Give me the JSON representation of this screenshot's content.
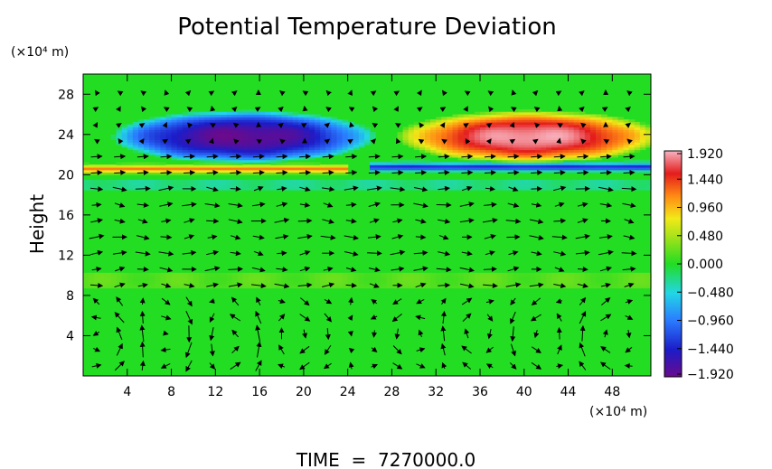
{
  "chart_data": {
    "type": "heatmap",
    "title": "Potential Temperature Deviation",
    "ylabel": "Height",
    "y_unit": "(×10⁴ m)",
    "x_unit": "(×10⁴ m)",
    "footer": "TIME  =  7270000.0",
    "xlim": [
      0,
      51.5
    ],
    "ylim": [
      0,
      30
    ],
    "x_ticks": [
      "4",
      "8",
      "12",
      "16",
      "20",
      "24",
      "28",
      "32",
      "36",
      "40",
      "44",
      "48"
    ],
    "x_tick_values": [
      4,
      8,
      12,
      16,
      20,
      24,
      28,
      32,
      36,
      40,
      44,
      48
    ],
    "y_ticks": [
      "4",
      "8",
      "12",
      "16",
      "20",
      "24",
      "28"
    ],
    "y_tick_values": [
      4,
      8,
      12,
      16,
      20,
      24,
      28
    ],
    "colorbar": {
      "min": -1.92,
      "max": 1.92,
      "tick_labels": [
        "1.920",
        "1.440",
        "0.960",
        "0.480",
        "0.000",
        "−0.480",
        "−0.960",
        "−1.440",
        "−1.920"
      ],
      "tick_values": [
        1.92,
        1.44,
        0.96,
        0.48,
        0.0,
        -0.48,
        -0.96,
        -1.44,
        -1.92
      ]
    },
    "features": [
      {
        "kind": "cold_anomaly",
        "center": [
          14.5,
          23.8
        ],
        "half_width": [
          12,
          2.6
        ],
        "peak": -1.9
      },
      {
        "kind": "warm_anomaly",
        "center": [
          40.5,
          23.8
        ],
        "half_width": [
          12,
          2.6
        ],
        "peak": 1.9
      },
      {
        "kind": "warm_layer",
        "x_range": [
          0,
          24
        ],
        "y": 20.6,
        "peak": 1.2
      },
      {
        "kind": "cold_layer",
        "x_range": [
          26,
          51.5
        ],
        "y": 20.8,
        "peak": -1.4
      }
    ],
    "vectors": "wind field arrows on a regular grid"
  }
}
